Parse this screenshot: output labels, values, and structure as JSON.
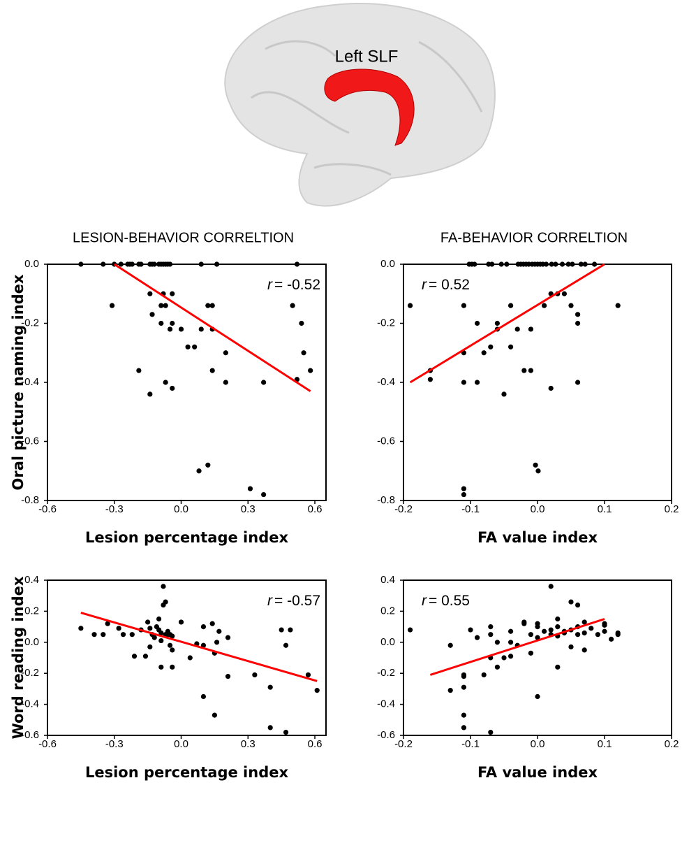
{
  "brain_label": "Left SLF",
  "chart_data": [
    {
      "type": "scatter",
      "title": "LESION-BEHAVIOR CORRELTION",
      "xlabel": "Lesion percentage index",
      "ylabel": "Oral picture naming  index",
      "annotation": {
        "symbol": "r",
        "text": "= -0.52"
      },
      "color": "#000000",
      "x": [
        -0.45,
        -0.35,
        -0.3,
        -0.27,
        -0.24,
        -0.23,
        -0.22,
        -0.19,
        -0.18,
        -0.14,
        -0.13,
        -0.12,
        -0.1,
        -0.09,
        -0.08,
        -0.07,
        -0.06,
        -0.05,
        0.09,
        0.16,
        0.52,
        -0.31,
        -0.14,
        -0.08,
        -0.04,
        -0.09,
        -0.07,
        0.12,
        0.14,
        0.5,
        -0.13,
        -0.09,
        -0.04,
        0.54,
        -0.05,
        0.0,
        0.09,
        0.14,
        0.03,
        0.06,
        0.2,
        0.55,
        -0.19,
        0.14,
        0.58,
        -0.07,
        0.2,
        0.37,
        0.52,
        -0.04,
        -0.14,
        0.08,
        0.12,
        0.31,
        0.37
      ],
      "y": [
        0,
        0,
        0,
        0,
        0,
        0,
        0,
        0,
        0,
        0,
        0,
        0,
        0,
        0,
        0,
        0,
        0,
        0,
        0,
        0,
        0,
        -0.14,
        -0.1,
        -0.1,
        -0.1,
        -0.14,
        -0.14,
        -0.14,
        -0.14,
        -0.14,
        -0.17,
        -0.2,
        -0.2,
        -0.2,
        -0.22,
        -0.22,
        -0.22,
        -0.22,
        -0.28,
        -0.28,
        -0.3,
        -0.3,
        -0.36,
        -0.36,
        -0.36,
        -0.4,
        -0.4,
        -0.4,
        -0.39,
        -0.42,
        -0.44,
        -0.7,
        -0.68,
        -0.76,
        -0.78
      ],
      "fit_line": {
        "x": [
          -0.3,
          0.58
        ],
        "y": [
          0,
          -0.43
        ],
        "color": "#ff0000"
      },
      "xlim": [
        -0.6,
        0.65
      ],
      "ylim": [
        -0.8,
        0
      ],
      "xticks": [
        -0.6,
        -0.3,
        {
          "value": 0,
          "label": "0.0"
        },
        0.3,
        0.6
      ],
      "yticks": [
        {
          "value": 0,
          "label": "0.0"
        },
        -0.2,
        -0.4,
        -0.6,
        -0.8
      ]
    },
    {
      "type": "scatter",
      "title": "FA-BEHAVIOR CORRELTION",
      "xlabel": "FA value index",
      "annotation": {
        "symbol": "r",
        "text": "= 0.52"
      },
      "color": "#000000",
      "x": [
        -0.102,
        -0.098,
        -0.094,
        -0.073,
        -0.068,
        -0.054,
        -0.046,
        -0.029,
        -0.025,
        -0.021,
        -0.017,
        -0.013,
        -0.008,
        -0.004,
        0.0,
        0.004,
        0.008,
        0.013,
        0.021,
        0.027,
        0.037,
        0.046,
        0.052,
        0.065,
        0.071,
        0.085,
        -0.19,
        -0.11,
        -0.04,
        0.01,
        0.12,
        0.02,
        0.03,
        0.04,
        0.05,
        -0.09,
        -0.06,
        0.06,
        0.06,
        -0.06,
        -0.03,
        -0.01,
        -0.04,
        -0.07,
        -0.11,
        -0.08,
        -0.16,
        -0.02,
        -0.01,
        -0.16,
        -0.11,
        -0.09,
        0.06,
        -0.05,
        0.02,
        -0.003,
        0.001,
        -0.11,
        -0.11
      ],
      "y": [
        0,
        0,
        0,
        0,
        0,
        0,
        0,
        0,
        0,
        0,
        0,
        0,
        0,
        0,
        0,
        0,
        0,
        0,
        0,
        0,
        0,
        0,
        0,
        0,
        0,
        0,
        -0.14,
        -0.14,
        -0.14,
        -0.14,
        -0.14,
        -0.1,
        -0.1,
        -0.1,
        -0.14,
        -0.2,
        -0.2,
        -0.17,
        -0.2,
        -0.22,
        -0.22,
        -0.22,
        -0.28,
        -0.28,
        -0.3,
        -0.3,
        -0.36,
        -0.36,
        -0.36,
        -0.39,
        -0.4,
        -0.4,
        -0.4,
        -0.44,
        -0.42,
        -0.68,
        -0.7,
        -0.76,
        -0.78
      ],
      "fit_line": {
        "x": [
          -0.19,
          0.1
        ],
        "y": [
          -0.4,
          0
        ],
        "color": "#ff0000"
      },
      "xlim": [
        -0.2,
        0.2
      ],
      "ylim": [
        -0.8,
        0
      ],
      "xticks": [
        -0.2,
        -0.1,
        {
          "value": 0,
          "label": "0.0"
        },
        0.1,
        0.2
      ],
      "yticks": [
        {
          "value": 0,
          "label": "0.0"
        },
        -0.2,
        -0.4,
        -0.6,
        -0.8
      ]
    },
    {
      "type": "scatter",
      "xlabel": "Lesion percentage index",
      "ylabel": "Word reading  index",
      "annotation": {
        "symbol": "r",
        "text": "= -0.57"
      },
      "color": "#000000",
      "x": [
        -0.45,
        -0.39,
        -0.35,
        -0.33,
        -0.28,
        -0.26,
        -0.22,
        -0.21,
        -0.18,
        -0.16,
        -0.15,
        -0.14,
        -0.14,
        -0.13,
        -0.12,
        -0.11,
        -0.1,
        -0.1,
        -0.09,
        -0.09,
        -0.08,
        -0.08,
        -0.07,
        -0.07,
        -0.06,
        -0.06,
        -0.05,
        -0.05,
        -0.04,
        -0.09,
        -0.04,
        -0.04,
        0.0,
        0.04,
        0.07,
        0.1,
        0.1,
        0.1,
        0.14,
        0.15,
        0.16,
        0.17,
        0.15,
        0.21,
        0.21,
        0.33,
        0.4,
        0.4,
        0.45,
        0.47,
        0.47,
        0.49,
        0.57,
        0.61
      ],
      "y": [
        0.09,
        0.05,
        0.05,
        0.12,
        0.09,
        0.05,
        0.05,
        -0.09,
        0.08,
        -0.09,
        0.13,
        0.09,
        -0.03,
        0.05,
        0.03,
        0.1,
        0.15,
        0.08,
        0.06,
        0.01,
        0.36,
        0.24,
        0.26,
        0.05,
        0.07,
        0.05,
        0.05,
        -0.02,
        0.04,
        -0.16,
        -0.16,
        -0.05,
        0.13,
        -0.1,
        -0.01,
        0.1,
        -0.02,
        -0.35,
        0.12,
        -0.07,
        0.0,
        0.07,
        -0.47,
        0.03,
        -0.22,
        -0.21,
        -0.29,
        -0.55,
        0.08,
        -0.58,
        -0.02,
        0.08,
        -0.21,
        -0.31
      ],
      "fit_line": {
        "x": [
          -0.45,
          0.61
        ],
        "y": [
          0.19,
          -0.25
        ],
        "color": "#ff0000"
      },
      "xlim": [
        -0.6,
        0.65
      ],
      "ylim": [
        -0.6,
        0.4
      ],
      "xticks": [
        -0.6,
        -0.3,
        {
          "value": 0,
          "label": "0.0"
        },
        0.3,
        0.6
      ],
      "yticks": [
        0.4,
        0.2,
        {
          "value": 0,
          "label": "0.0"
        },
        -0.2,
        -0.4,
        -0.6
      ]
    },
    {
      "type": "scatter",
      "xlabel": "FA value index",
      "annotation": {
        "symbol": "r",
        "text": "= 0.55"
      },
      "color": "#000000",
      "x": [
        -0.19,
        -0.13,
        -0.13,
        -0.11,
        -0.11,
        -0.11,
        -0.11,
        -0.11,
        -0.1,
        -0.09,
        -0.08,
        -0.07,
        -0.07,
        -0.07,
        -0.07,
        -0.06,
        -0.06,
        -0.05,
        -0.04,
        -0.04,
        -0.04,
        -0.03,
        -0.02,
        -0.02,
        -0.01,
        -0.01,
        0.0,
        0.0,
        0.0,
        0.0,
        0.01,
        0.02,
        0.02,
        0.02,
        0.03,
        0.03,
        0.03,
        0.03,
        0.04,
        0.04,
        0.05,
        0.05,
        0.05,
        0.06,
        0.06,
        0.06,
        0.07,
        0.07,
        0.07,
        0.08,
        0.09,
        0.1,
        0.1,
        0.11,
        0.12,
        0.12,
        0.1
      ],
      "y": [
        0.08,
        -0.31,
        -0.02,
        -0.22,
        -0.21,
        -0.29,
        -0.47,
        -0.55,
        0.08,
        0.03,
        -0.21,
        0.05,
        0.1,
        -0.1,
        -0.58,
        0.0,
        -0.16,
        -0.1,
        0.07,
        0.0,
        -0.09,
        -0.02,
        0.12,
        0.13,
        0.05,
        -0.07,
        0.12,
        0.1,
        0.03,
        -0.35,
        0.07,
        0.36,
        0.05,
        0.08,
        0.04,
        -0.16,
        0.15,
        0.1,
        0.07,
        0.06,
        0.26,
        0.08,
        -0.03,
        0.1,
        0.24,
        0.05,
        0.13,
        0.06,
        -0.05,
        0.09,
        0.05,
        0.07,
        0.11,
        0.02,
        0.05,
        0.06,
        0.12
      ],
      "fit_line": {
        "x": [
          -0.16,
          0.1
        ],
        "y": [
          -0.21,
          0.15
        ],
        "color": "#ff0000"
      },
      "xlim": [
        -0.2,
        0.2
      ],
      "ylim": [
        -0.6,
        0.4
      ],
      "xticks": [
        -0.2,
        -0.1,
        {
          "value": 0,
          "label": "0.0"
        },
        0.1,
        0.2
      ],
      "yticks": [
        0.4,
        0.2,
        {
          "value": 0,
          "label": "0.0"
        },
        -0.2,
        -0.4,
        -0.6
      ]
    }
  ]
}
